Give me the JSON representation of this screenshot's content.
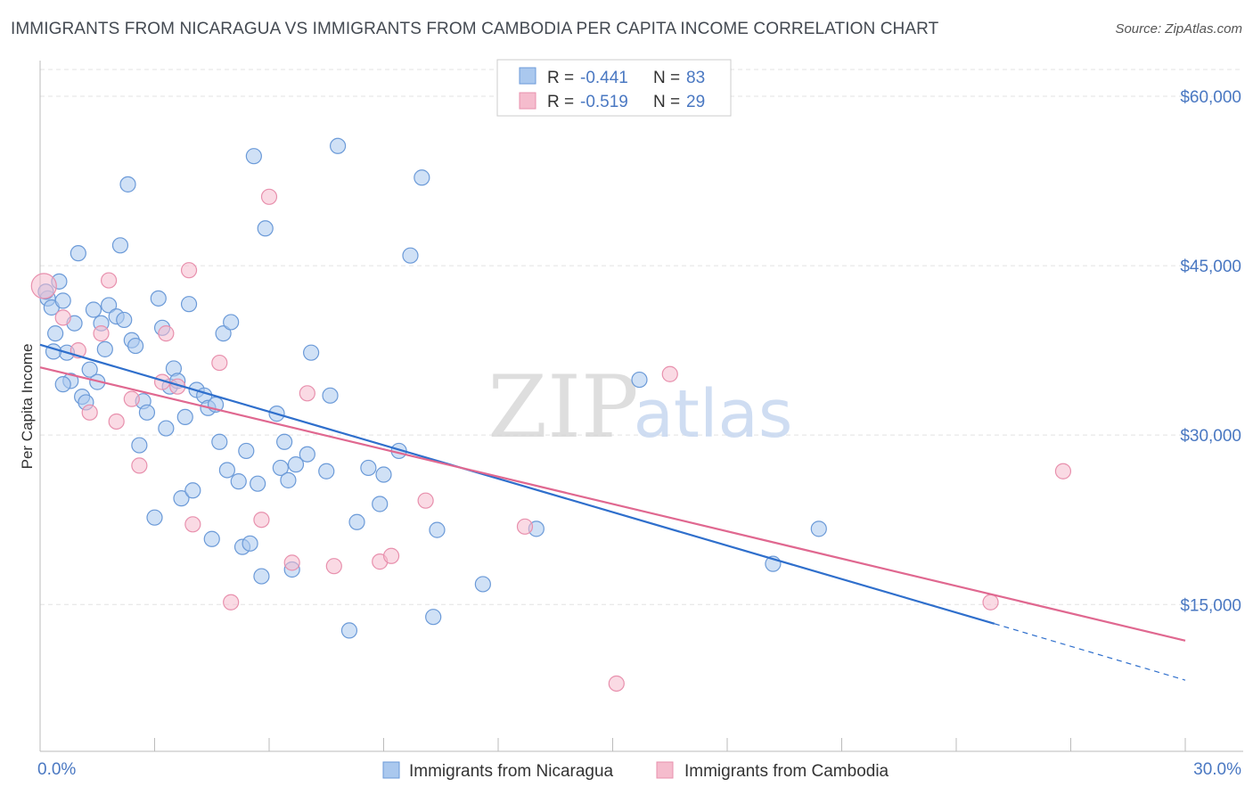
{
  "header": {
    "title": "IMMIGRANTS FROM NICARAGUA VS IMMIGRANTS FROM CAMBODIA PER CAPITA INCOME CORRELATION CHART",
    "source": "Source: ZipAtlas.com"
  },
  "watermark": {
    "zip": "ZIP",
    "atlas": "atlas"
  },
  "legend_box": {
    "r_label": "R =",
    "n_label": "N =",
    "rows": [
      {
        "r": "-0.441",
        "n": "83"
      },
      {
        "r": "-0.519",
        "n": "29"
      }
    ]
  },
  "colors": {
    "nicaragua_fill": "#aac8ee",
    "nicaragua_stroke": "#6b9ad8",
    "nicaragua_line": "#2f6fcc",
    "cambodia_fill": "#f5bccd",
    "cambodia_stroke": "#e890ad",
    "cambodia_line": "#e06890",
    "axis_text": "#4a78c2"
  },
  "chart_data": {
    "type": "scatter",
    "title": "IMMIGRANTS FROM NICARAGUA VS IMMIGRANTS FROM CAMBODIA PER CAPITA INCOME CORRELATION CHART",
    "xlabel": "",
    "ylabel": "Per Capita Income",
    "xlim": [
      0,
      30
    ],
    "ylim": [
      2000,
      63000
    ],
    "x_tick_labels": [
      "0.0%",
      "30.0%"
    ],
    "y_ticks": [
      {
        "value": 15000,
        "label": "$15,000"
      },
      {
        "value": 30000,
        "label": "$30,000"
      },
      {
        "value": 45000,
        "label": "$45,000"
      },
      {
        "value": 60000,
        "label": "$60,000"
      }
    ],
    "grid": true,
    "legend_position": "bottom-center",
    "series": [
      {
        "name": "Immigrants from Nicaragua",
        "color": "#aac8ee",
        "trend": {
          "x": [
            0,
            25.0
          ],
          "y": [
            38000,
            13300
          ],
          "dashed_extension": {
            "x": [
              25.0,
              30.0
            ],
            "y": [
              13300,
              8300
            ]
          }
        },
        "points": [
          [
            0.2,
            42100
          ],
          [
            0.3,
            41300
          ],
          [
            0.5,
            43600
          ],
          [
            0.6,
            41900
          ],
          [
            0.4,
            39000
          ],
          [
            0.7,
            37300
          ],
          [
            0.8,
            34800
          ],
          [
            0.9,
            39900
          ],
          [
            1.1,
            33400
          ],
          [
            1.2,
            32900
          ],
          [
            1.0,
            46100
          ],
          [
            1.3,
            35800
          ],
          [
            1.5,
            34700
          ],
          [
            1.6,
            39900
          ],
          [
            1.7,
            37600
          ],
          [
            1.8,
            41500
          ],
          [
            2.0,
            40500
          ],
          [
            2.2,
            40200
          ],
          [
            2.3,
            52200
          ],
          [
            2.4,
            38400
          ],
          [
            2.5,
            37900
          ],
          [
            2.6,
            29100
          ],
          [
            2.7,
            33000
          ],
          [
            2.8,
            32000
          ],
          [
            2.1,
            46800
          ],
          [
            3.0,
            22700
          ],
          [
            3.1,
            42100
          ],
          [
            3.2,
            39500
          ],
          [
            3.3,
            30600
          ],
          [
            3.4,
            34300
          ],
          [
            3.5,
            35900
          ],
          [
            3.6,
            34800
          ],
          [
            3.7,
            24400
          ],
          [
            3.8,
            31600
          ],
          [
            3.9,
            41600
          ],
          [
            4.0,
            25100
          ],
          [
            4.1,
            34000
          ],
          [
            4.3,
            33500
          ],
          [
            4.4,
            32400
          ],
          [
            4.5,
            20800
          ],
          [
            4.6,
            32700
          ],
          [
            4.7,
            29400
          ],
          [
            4.8,
            39000
          ],
          [
            4.9,
            26900
          ],
          [
            5.0,
            40000
          ],
          [
            5.2,
            25900
          ],
          [
            5.3,
            20100
          ],
          [
            5.4,
            28600
          ],
          [
            5.5,
            20400
          ],
          [
            5.6,
            54700
          ],
          [
            5.7,
            25700
          ],
          [
            5.8,
            17500
          ],
          [
            5.9,
            48300
          ],
          [
            6.2,
            31900
          ],
          [
            6.3,
            27100
          ],
          [
            6.4,
            29400
          ],
          [
            6.5,
            26000
          ],
          [
            6.6,
            18100
          ],
          [
            6.7,
            27400
          ],
          [
            7.0,
            28300
          ],
          [
            7.1,
            37300
          ],
          [
            7.5,
            26800
          ],
          [
            7.6,
            33500
          ],
          [
            7.8,
            55600
          ],
          [
            8.1,
            12700
          ],
          [
            8.3,
            22300
          ],
          [
            8.6,
            27100
          ],
          [
            8.9,
            23900
          ],
          [
            9.0,
            26500
          ],
          [
            9.4,
            28600
          ],
          [
            9.7,
            45900
          ],
          [
            10.0,
            52800
          ],
          [
            10.3,
            13900
          ],
          [
            10.4,
            21600
          ],
          [
            11.6,
            16800
          ],
          [
            13.0,
            21700
          ],
          [
            15.7,
            34900
          ],
          [
            19.2,
            18600
          ],
          [
            20.4,
            21700
          ],
          [
            0.15,
            42700
          ],
          [
            0.35,
            37400
          ],
          [
            1.4,
            41100
          ],
          [
            0.6,
            34500
          ]
        ]
      },
      {
        "name": "Immigrants from Cambodia",
        "color": "#f5bccd",
        "trend": {
          "x": [
            0,
            30.0
          ],
          "y": [
            36000,
            11800
          ]
        },
        "points": [
          [
            0.1,
            43200
          ],
          [
            0.6,
            40400
          ],
          [
            1.0,
            37500
          ],
          [
            1.3,
            32000
          ],
          [
            1.6,
            39000
          ],
          [
            1.8,
            43700
          ],
          [
            2.0,
            31200
          ],
          [
            2.4,
            33200
          ],
          [
            2.6,
            27300
          ],
          [
            3.2,
            34700
          ],
          [
            3.3,
            39000
          ],
          [
            3.6,
            34300
          ],
          [
            3.9,
            44600
          ],
          [
            4.0,
            22100
          ],
          [
            4.7,
            36400
          ],
          [
            5.0,
            15200
          ],
          [
            5.8,
            22500
          ],
          [
            6.0,
            51100
          ],
          [
            6.6,
            18700
          ],
          [
            7.0,
            33700
          ],
          [
            7.7,
            18400
          ],
          [
            8.9,
            18800
          ],
          [
            9.2,
            19300
          ],
          [
            10.1,
            24200
          ],
          [
            12.7,
            21900
          ],
          [
            15.1,
            8000
          ],
          [
            16.5,
            35400
          ],
          [
            24.9,
            15200
          ],
          [
            26.8,
            26800
          ]
        ]
      }
    ]
  },
  "bottom_legend": {
    "items": [
      {
        "label": "Immigrants from Nicaragua"
      },
      {
        "label": "Immigrants from Cambodia"
      }
    ]
  }
}
